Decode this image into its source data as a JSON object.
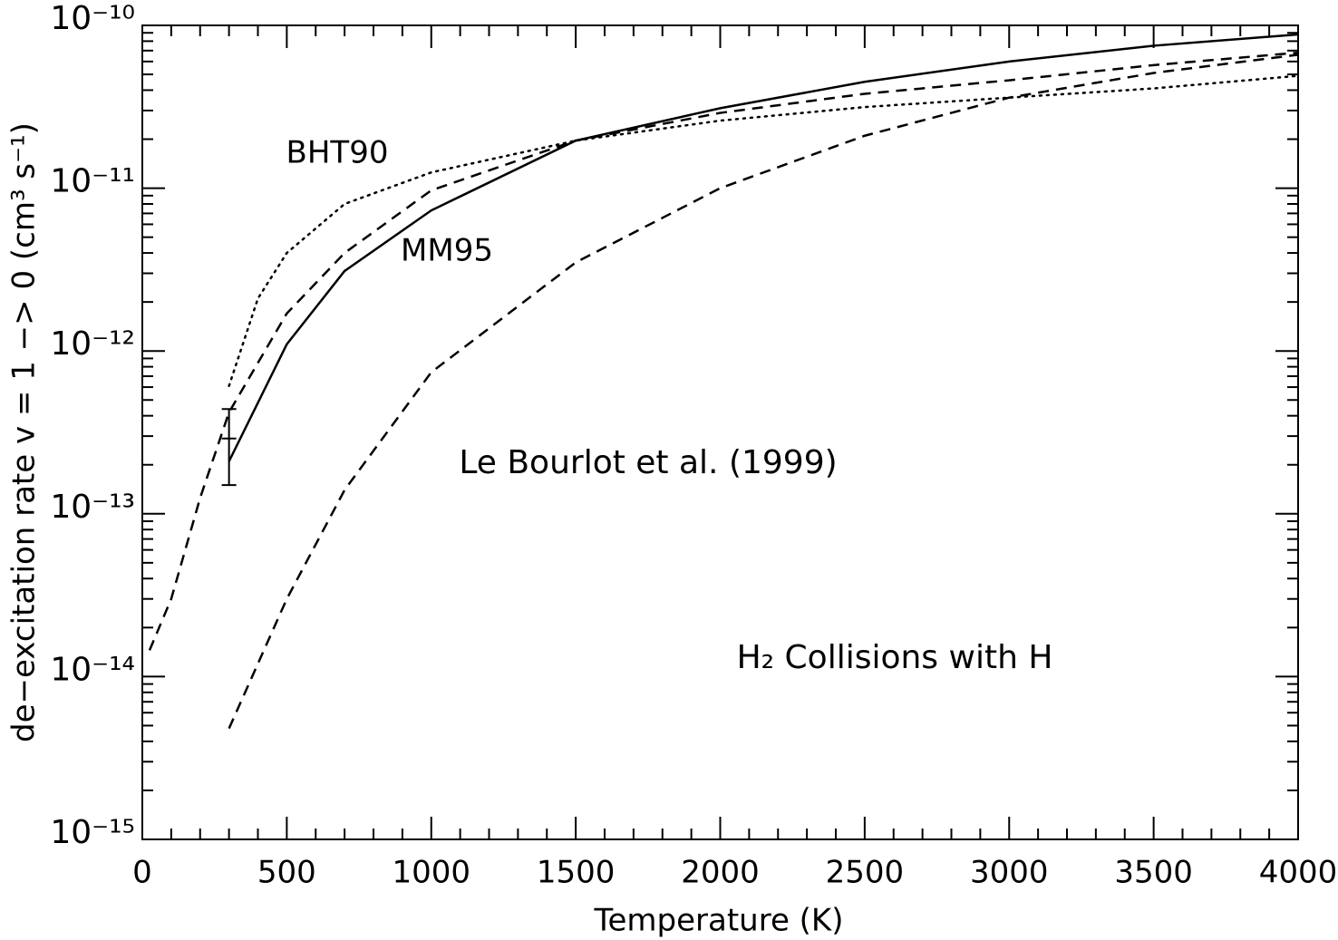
{
  "chart_data": {
    "type": "line",
    "xlabel": "Temperature (K)",
    "ylabel": "de−excitation rate v = 1 −> 0 (cm³ s⁻¹)",
    "annotations": [
      "Le Bourlot et al. (1999)",
      "H₂ Collisions with H"
    ],
    "xlim": [
      0,
      4000
    ],
    "xticks": [
      0,
      500,
      1000,
      1500,
      2000,
      2500,
      3000,
      3500,
      4000
    ],
    "ylim": [
      1e-15,
      1e-10
    ],
    "log_y": true,
    "yticks": [
      {
        "value": 1e-15,
        "label": "10⁻¹⁵"
      },
      {
        "value": 1e-14,
        "label": "10⁻¹⁴"
      },
      {
        "value": 1e-13,
        "label": "10⁻¹³"
      },
      {
        "value": 1e-12,
        "label": "10⁻¹²"
      },
      {
        "value": 1e-11,
        "label": "10⁻¹¹"
      },
      {
        "value": 1e-10,
        "label": "10⁻¹⁰"
      }
    ],
    "minor_ticks": true,
    "series": [
      {
        "name": "MM95",
        "color": "#000000",
        "dash": "solid",
        "x": [
          300,
          500,
          700,
          1000,
          1500,
          2000,
          2500,
          3000,
          3500,
          4000
        ],
        "values": [
          2.1e-13,
          1.1e-12,
          3.1e-12,
          7.3e-12,
          1.96e-11,
          3.1e-11,
          4.5e-11,
          6e-11,
          7.5e-11,
          8.8e-11
        ]
      },
      {
        "name": "BHT90",
        "color": "#000000",
        "dash": "dotted",
        "x": [
          300,
          400,
          500,
          700,
          1000,
          1500,
          2000,
          2500,
          3000,
          3500,
          4000
        ],
        "values": [
          6.1e-13,
          2.1e-12,
          4e-12,
          8e-12,
          1.25e-11,
          1.96e-11,
          2.6e-11,
          3.15e-11,
          3.6e-11,
          4.1e-11,
          4.9e-11
        ]
      },
      {
        "color": "#000000",
        "dash": "dashed",
        "x": [
          25,
          100,
          200,
          300,
          500,
          700,
          1000,
          1500,
          2000,
          2500,
          3000,
          3500,
          4000
        ],
        "values": [
          1.45e-14,
          3e-14,
          1.25e-13,
          4.2e-13,
          1.7e-12,
          4e-12,
          9.7e-12,
          1.96e-11,
          2.9e-11,
          3.8e-11,
          4.6e-11,
          5.7e-11,
          6.8e-11
        ]
      },
      {
        "color": "#000000",
        "dash": "dashed",
        "x": [
          300,
          500,
          700,
          1000,
          1500,
          2000,
          2500,
          3000,
          3500,
          4000
        ],
        "values": [
          4.8e-15,
          3e-14,
          1.4e-13,
          7.4e-13,
          3.5e-12,
          1e-11,
          2.1e-11,
          3.6e-11,
          5.1e-11,
          6.6e-11
        ]
      }
    ],
    "errorbar": {
      "x": 300,
      "low": 1.5e-13,
      "mid": 2.9e-13,
      "high": 4.4e-13
    }
  }
}
